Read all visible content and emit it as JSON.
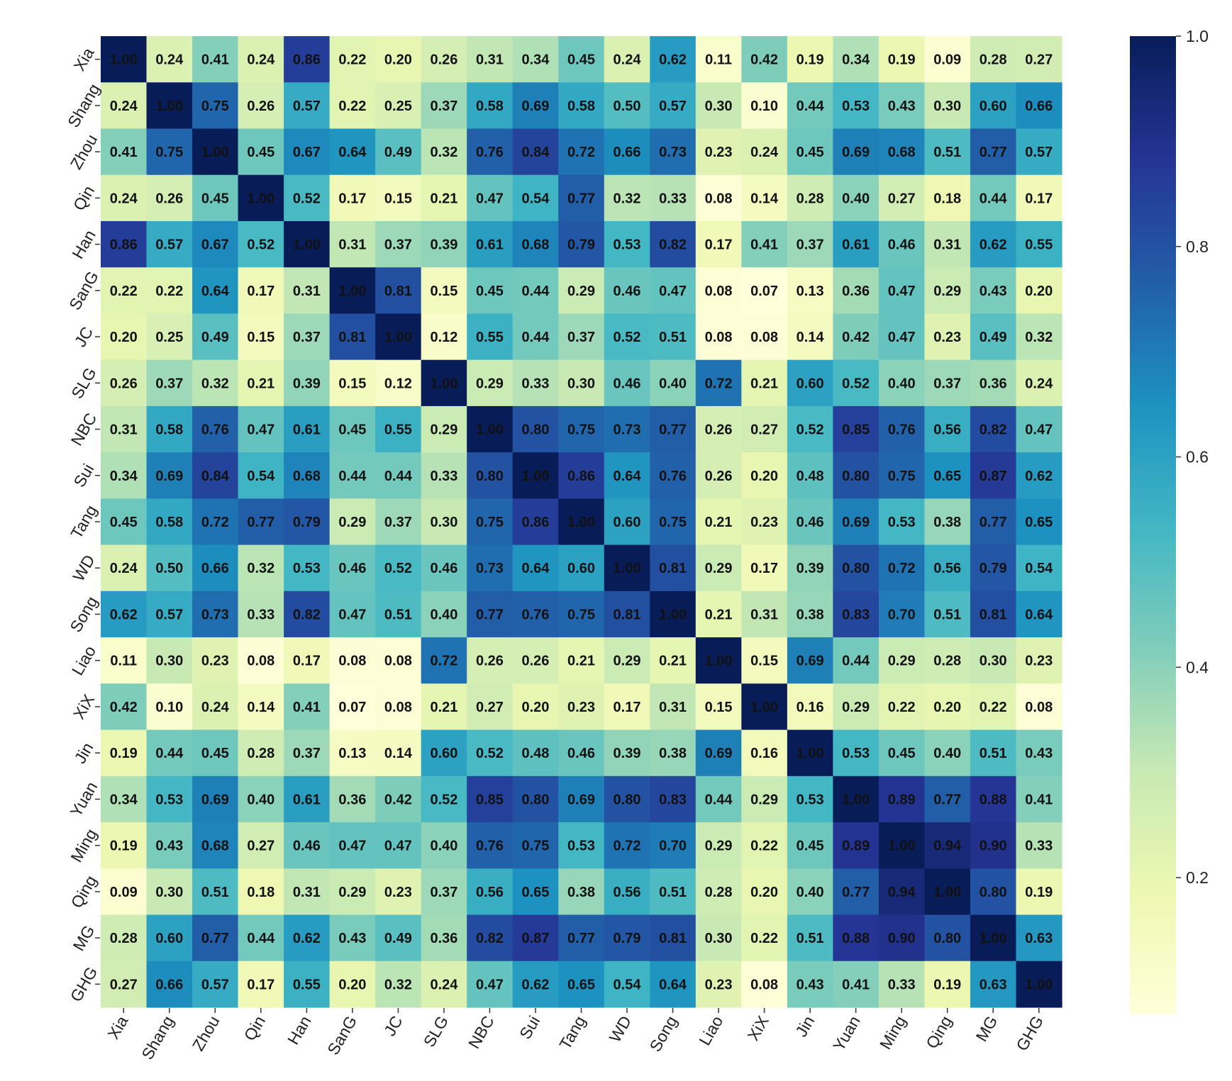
{
  "chart_data": {
    "type": "heatmap",
    "title": "",
    "xlabel": "",
    "ylabel": "",
    "x_categories": [
      "Xia",
      "Shang",
      "Zhou",
      "Qin",
      "Han",
      "SanG",
      "JC",
      "SLG",
      "NBC",
      "Sui",
      "Tang",
      "WD",
      "Song",
      "Liao",
      "XiX",
      "Jin",
      "Yuan",
      "Ming",
      "Qing",
      "MG",
      "GHG"
    ],
    "y_categories": [
      "Xia",
      "Shang",
      "Zhou",
      "Qin",
      "Han",
      "SanG",
      "JC",
      "SLG",
      "NBC",
      "Sui",
      "Tang",
      "WD",
      "Song",
      "Liao",
      "XiX",
      "Jin",
      "Yuan",
      "Ming",
      "Qing",
      "MG",
      "GHG"
    ],
    "values": [
      [
        1.0,
        0.24,
        0.41,
        0.24,
        0.86,
        0.22,
        0.2,
        0.26,
        0.31,
        0.34,
        0.45,
        0.24,
        0.62,
        0.11,
        0.42,
        0.19,
        0.34,
        0.19,
        0.09,
        0.28,
        0.27
      ],
      [
        0.24,
        1.0,
        0.75,
        0.26,
        0.57,
        0.22,
        0.25,
        0.37,
        0.58,
        0.69,
        0.58,
        0.5,
        0.57,
        0.3,
        0.1,
        0.44,
        0.53,
        0.43,
        0.3,
        0.6,
        0.66
      ],
      [
        0.41,
        0.75,
        1.0,
        0.45,
        0.67,
        0.64,
        0.49,
        0.32,
        0.76,
        0.84,
        0.72,
        0.66,
        0.73,
        0.23,
        0.24,
        0.45,
        0.69,
        0.68,
        0.51,
        0.77,
        0.57
      ],
      [
        0.24,
        0.26,
        0.45,
        1.0,
        0.52,
        0.17,
        0.15,
        0.21,
        0.47,
        0.54,
        0.77,
        0.32,
        0.33,
        0.08,
        0.14,
        0.28,
        0.4,
        0.27,
        0.18,
        0.44,
        0.17
      ],
      [
        0.86,
        0.57,
        0.67,
        0.52,
        1.0,
        0.31,
        0.37,
        0.39,
        0.61,
        0.68,
        0.79,
        0.53,
        0.82,
        0.17,
        0.41,
        0.37,
        0.61,
        0.46,
        0.31,
        0.62,
        0.55
      ],
      [
        0.22,
        0.22,
        0.64,
        0.17,
        0.31,
        1.0,
        0.81,
        0.15,
        0.45,
        0.44,
        0.29,
        0.46,
        0.47,
        0.08,
        0.07,
        0.13,
        0.36,
        0.47,
        0.29,
        0.43,
        0.2
      ],
      [
        0.2,
        0.25,
        0.49,
        0.15,
        0.37,
        0.81,
        1.0,
        0.12,
        0.55,
        0.44,
        0.37,
        0.52,
        0.51,
        0.08,
        0.08,
        0.14,
        0.42,
        0.47,
        0.23,
        0.49,
        0.32
      ],
      [
        0.26,
        0.37,
        0.32,
        0.21,
        0.39,
        0.15,
        0.12,
        1.0,
        0.29,
        0.33,
        0.3,
        0.46,
        0.4,
        0.72,
        0.21,
        0.6,
        0.52,
        0.4,
        0.37,
        0.36,
        0.24
      ],
      [
        0.31,
        0.58,
        0.76,
        0.47,
        0.61,
        0.45,
        0.55,
        0.29,
        1.0,
        0.8,
        0.75,
        0.73,
        0.77,
        0.26,
        0.27,
        0.52,
        0.85,
        0.76,
        0.56,
        0.82,
        0.47
      ],
      [
        0.34,
        0.69,
        0.84,
        0.54,
        0.68,
        0.44,
        0.44,
        0.33,
        0.8,
        1.0,
        0.86,
        0.64,
        0.76,
        0.26,
        0.2,
        0.48,
        0.8,
        0.75,
        0.65,
        0.87,
        0.62
      ],
      [
        0.45,
        0.58,
        0.72,
        0.77,
        0.79,
        0.29,
        0.37,
        0.3,
        0.75,
        0.86,
        1.0,
        0.6,
        0.75,
        0.21,
        0.23,
        0.46,
        0.69,
        0.53,
        0.38,
        0.77,
        0.65
      ],
      [
        0.24,
        0.5,
        0.66,
        0.32,
        0.53,
        0.46,
        0.52,
        0.46,
        0.73,
        0.64,
        0.6,
        1.0,
        0.81,
        0.29,
        0.17,
        0.39,
        0.8,
        0.72,
        0.56,
        0.79,
        0.54
      ],
      [
        0.62,
        0.57,
        0.73,
        0.33,
        0.82,
        0.47,
        0.51,
        0.4,
        0.77,
        0.76,
        0.75,
        0.81,
        1.0,
        0.21,
        0.31,
        0.38,
        0.83,
        0.7,
        0.51,
        0.81,
        0.64
      ],
      [
        0.11,
        0.3,
        0.23,
        0.08,
        0.17,
        0.08,
        0.08,
        0.72,
        0.26,
        0.26,
        0.21,
        0.29,
        0.21,
        1.0,
        0.15,
        0.69,
        0.44,
        0.29,
        0.28,
        0.3,
        0.23
      ],
      [
        0.42,
        0.1,
        0.24,
        0.14,
        0.41,
        0.07,
        0.08,
        0.21,
        0.27,
        0.2,
        0.23,
        0.17,
        0.31,
        0.15,
        1.0,
        0.16,
        0.29,
        0.22,
        0.2,
        0.22,
        0.08
      ],
      [
        0.19,
        0.44,
        0.45,
        0.28,
        0.37,
        0.13,
        0.14,
        0.6,
        0.52,
        0.48,
        0.46,
        0.39,
        0.38,
        0.69,
        0.16,
        1.0,
        0.53,
        0.45,
        0.4,
        0.51,
        0.43
      ],
      [
        0.34,
        0.53,
        0.69,
        0.4,
        0.61,
        0.36,
        0.42,
        0.52,
        0.85,
        0.8,
        0.69,
        0.8,
        0.83,
        0.44,
        0.29,
        0.53,
        1.0,
        0.89,
        0.77,
        0.88,
        0.41
      ],
      [
        0.19,
        0.43,
        0.68,
        0.27,
        0.46,
        0.47,
        0.47,
        0.4,
        0.76,
        0.75,
        0.53,
        0.72,
        0.7,
        0.29,
        0.22,
        0.45,
        0.89,
        1.0,
        0.94,
        0.9,
        0.33
      ],
      [
        0.09,
        0.3,
        0.51,
        0.18,
        0.31,
        0.29,
        0.23,
        0.37,
        0.56,
        0.65,
        0.38,
        0.56,
        0.51,
        0.28,
        0.2,
        0.4,
        0.77,
        0.94,
        1.0,
        0.8,
        0.19
      ],
      [
        0.28,
        0.6,
        0.77,
        0.44,
        0.62,
        0.43,
        0.49,
        0.36,
        0.82,
        0.87,
        0.77,
        0.79,
        0.81,
        0.3,
        0.22,
        0.51,
        0.88,
        0.9,
        0.8,
        1.0,
        0.63
      ],
      [
        0.27,
        0.66,
        0.57,
        0.17,
        0.55,
        0.2,
        0.32,
        0.24,
        0.47,
        0.62,
        0.65,
        0.54,
        0.64,
        0.23,
        0.08,
        0.43,
        0.41,
        0.33,
        0.19,
        0.63,
        1.0
      ]
    ],
    "value_range": [
      0.07,
      1.0
    ],
    "colormap": "YlGnBu",
    "colormap_stops": [
      "#ffffd9",
      "#edf8b1",
      "#c7e9b4",
      "#7fcdbb",
      "#41b6c4",
      "#1d91c0",
      "#225ea8",
      "#253494",
      "#081d58"
    ],
    "annotations": true,
    "annotation_format": "0.00",
    "colorbar": {
      "ticks": [
        0.2,
        0.4,
        0.6,
        0.8,
        1.0
      ],
      "tick_labels": [
        "0.2",
        "0.4",
        "0.6",
        "0.8",
        "1.0"
      ],
      "placement": "right"
    }
  }
}
